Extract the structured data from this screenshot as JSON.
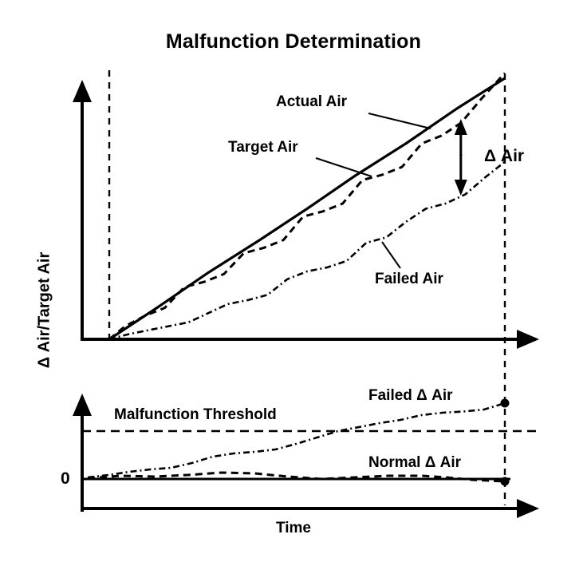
{
  "title": "Malfunction Determination",
  "y_axis_label": "Δ Air/Target Air",
  "x_axis_label": "Time",
  "colors": {
    "ink": "#000000",
    "background": "#ffffff"
  },
  "chart_data": [
    {
      "type": "line",
      "panel": "top",
      "title": "Malfunction Determination",
      "xlabel": "Time",
      "ylabel": "Δ Air/Target Air",
      "x_range": [
        0,
        1
      ],
      "y_range": [
        0,
        1.05
      ],
      "grid": false,
      "legend_position": "inline-annotations",
      "window_markers": "dashed vertical lines at start and end of monitoring window",
      "gap_annotation": {
        "label": "Δ Air",
        "between": [
          "Actual Air",
          "Failed Air"
        ],
        "at_x": 0.925
      },
      "series": [
        {
          "name": "Actual Air",
          "style": "solid",
          "points": [
            [
              0,
              0
            ],
            [
              0.12,
              0.12
            ],
            [
              0.25,
              0.255
            ],
            [
              0.38,
              0.38
            ],
            [
              0.5,
              0.5
            ],
            [
              0.62,
              0.625
            ],
            [
              0.75,
              0.75
            ],
            [
              0.88,
              0.885
            ],
            [
              1,
              1
            ]
          ]
        },
        {
          "name": "Target Air",
          "style": "dashed",
          "points": [
            [
              0,
              0
            ],
            [
              0.04,
              0.05
            ],
            [
              0.09,
              0.09
            ],
            [
              0.14,
              0.12
            ],
            [
              0.19,
              0.2
            ],
            [
              0.24,
              0.22
            ],
            [
              0.29,
              0.25
            ],
            [
              0.34,
              0.33
            ],
            [
              0.39,
              0.35
            ],
            [
              0.44,
              0.38
            ],
            [
              0.49,
              0.47
            ],
            [
              0.54,
              0.49
            ],
            [
              0.59,
              0.52
            ],
            [
              0.64,
              0.61
            ],
            [
              0.69,
              0.63
            ],
            [
              0.74,
              0.66
            ],
            [
              0.79,
              0.75
            ],
            [
              0.84,
              0.78
            ],
            [
              0.89,
              0.83
            ],
            [
              0.94,
              0.92
            ],
            [
              1,
              1.02
            ]
          ]
        },
        {
          "name": "Failed Air",
          "style": "dash-dot",
          "points": [
            [
              0,
              0
            ],
            [
              0.05,
              0.02
            ],
            [
              0.1,
              0.035
            ],
            [
              0.15,
              0.05
            ],
            [
              0.2,
              0.065
            ],
            [
              0.25,
              0.1
            ],
            [
              0.3,
              0.135
            ],
            [
              0.35,
              0.15
            ],
            [
              0.4,
              0.17
            ],
            [
              0.45,
              0.23
            ],
            [
              0.5,
              0.26
            ],
            [
              0.55,
              0.275
            ],
            [
              0.6,
              0.3
            ],
            [
              0.65,
              0.37
            ],
            [
              0.7,
              0.39
            ],
            [
              0.75,
              0.45
            ],
            [
              0.8,
              0.5
            ],
            [
              0.85,
              0.52
            ],
            [
              0.9,
              0.555
            ],
            [
              0.95,
              0.62
            ],
            [
              1,
              0.68
            ]
          ]
        }
      ]
    },
    {
      "type": "line",
      "panel": "bottom",
      "xlabel": "Time",
      "ylabel": "Δ Air",
      "y_zero_label": "0",
      "x_range": [
        0,
        1
      ],
      "y_range": [
        -0.05,
        1.0
      ],
      "grid": false,
      "threshold": {
        "label": "Malfunction Threshold",
        "value": 0.6,
        "style": "dashed"
      },
      "series": [
        {
          "name": "Failed Δ Air",
          "style": "dash-dot",
          "endpoint_dot": true,
          "points": [
            [
              0,
              0.02
            ],
            [
              0.05,
              0.05
            ],
            [
              0.1,
              0.09
            ],
            [
              0.15,
              0.12
            ],
            [
              0.2,
              0.14
            ],
            [
              0.25,
              0.2
            ],
            [
              0.3,
              0.28
            ],
            [
              0.35,
              0.32
            ],
            [
              0.4,
              0.34
            ],
            [
              0.45,
              0.37
            ],
            [
              0.5,
              0.44
            ],
            [
              0.55,
              0.52
            ],
            [
              0.6,
              0.6
            ],
            [
              0.65,
              0.65
            ],
            [
              0.7,
              0.7
            ],
            [
              0.75,
              0.74
            ],
            [
              0.8,
              0.8
            ],
            [
              0.85,
              0.83
            ],
            [
              0.9,
              0.845
            ],
            [
              0.95,
              0.87
            ],
            [
              1,
              0.95
            ]
          ]
        },
        {
          "name": "Normal Δ Air",
          "style": "dashed",
          "endpoint_dot": true,
          "points": [
            [
              0,
              0.01
            ],
            [
              0.08,
              0.04
            ],
            [
              0.16,
              0.03
            ],
            [
              0.24,
              0.05
            ],
            [
              0.32,
              0.08
            ],
            [
              0.4,
              0.07
            ],
            [
              0.48,
              0.03
            ],
            [
              0.56,
              0.0
            ],
            [
              0.64,
              0.02
            ],
            [
              0.72,
              0.04
            ],
            [
              0.8,
              0.04
            ],
            [
              0.86,
              0.02
            ],
            [
              0.92,
              -0.01
            ],
            [
              1,
              -0.03
            ]
          ]
        }
      ]
    }
  ]
}
